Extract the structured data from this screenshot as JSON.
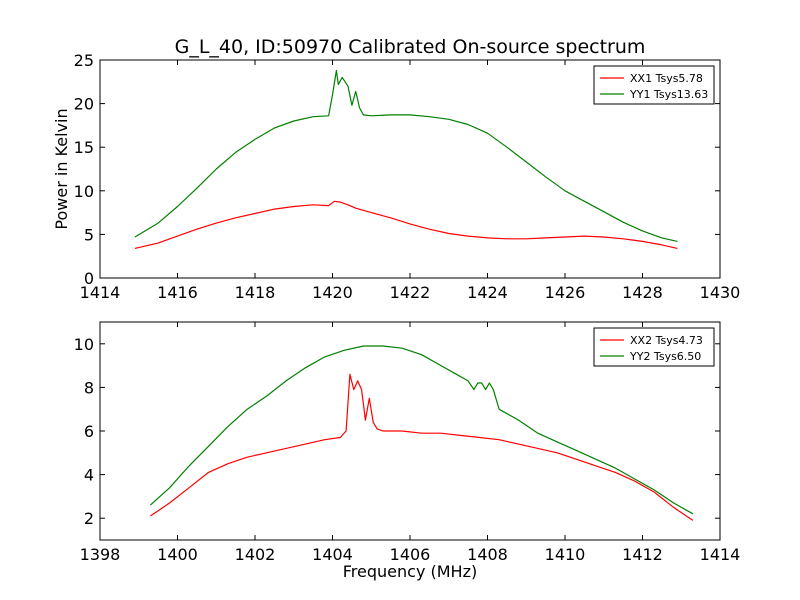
{
  "chart_data": [
    {
      "type": "line",
      "title": "G_L_40, ID:50970 Calibrated On-source spectrum",
      "xlabel": "",
      "ylabel": "Power in Kelvin",
      "xlim": [
        1414,
        1430
      ],
      "ylim": [
        0,
        25
      ],
      "xticks": [
        "1414",
        "1416",
        "1418",
        "1420",
        "1422",
        "1424",
        "1426",
        "1428",
        "1430"
      ],
      "yticks": [
        "0",
        "5",
        "10",
        "15",
        "20",
        "25"
      ],
      "legend": "top-right",
      "series": [
        {
          "name": "XX1 Tsys5.78",
          "color": "#ff0000",
          "x": [
            1414.9,
            1415.5,
            1416.0,
            1416.5,
            1417.0,
            1417.5,
            1418.0,
            1418.5,
            1419.0,
            1419.5,
            1419.9,
            1420.05,
            1420.2,
            1420.4,
            1420.6,
            1421.0,
            1421.5,
            1422.0,
            1422.5,
            1423.0,
            1423.5,
            1424.0,
            1424.5,
            1425.0,
            1425.5,
            1426.0,
            1426.5,
            1427.0,
            1427.5,
            1428.0,
            1428.5,
            1428.9
          ],
          "y": [
            3.4,
            4.0,
            4.8,
            5.6,
            6.3,
            6.9,
            7.4,
            7.9,
            8.2,
            8.4,
            8.3,
            8.8,
            8.7,
            8.4,
            8.0,
            7.5,
            6.9,
            6.2,
            5.6,
            5.1,
            4.8,
            4.6,
            4.5,
            4.5,
            4.6,
            4.7,
            4.8,
            4.7,
            4.5,
            4.2,
            3.8,
            3.4
          ]
        },
        {
          "name": "YY1 Tsys13.63",
          "color": "#008000",
          "x": [
            1414.9,
            1415.5,
            1416.0,
            1416.5,
            1417.0,
            1417.5,
            1418.0,
            1418.5,
            1419.0,
            1419.5,
            1419.9,
            1420.0,
            1420.1,
            1420.15,
            1420.25,
            1420.4,
            1420.5,
            1420.6,
            1420.7,
            1420.8,
            1421.0,
            1421.5,
            1422.0,
            1422.5,
            1423.0,
            1423.5,
            1424.0,
            1424.5,
            1425.0,
            1425.5,
            1426.0,
            1426.5,
            1427.0,
            1427.5,
            1428.0,
            1428.5,
            1428.9
          ],
          "y": [
            4.7,
            6.3,
            8.2,
            10.3,
            12.5,
            14.4,
            15.9,
            17.2,
            18.0,
            18.5,
            18.6,
            21.0,
            23.8,
            22.2,
            23.0,
            22.0,
            19.8,
            21.4,
            19.5,
            18.7,
            18.6,
            18.7,
            18.7,
            18.5,
            18.2,
            17.6,
            16.6,
            15.0,
            13.3,
            11.6,
            10.0,
            8.8,
            7.6,
            6.4,
            5.4,
            4.6,
            4.2
          ]
        }
      ]
    },
    {
      "type": "line",
      "title": "",
      "xlabel": "Frequency (MHz)",
      "ylabel": "",
      "xlim": [
        1398,
        1414
      ],
      "ylim": [
        1,
        11
      ],
      "xticks": [
        "1398",
        "1400",
        "1402",
        "1404",
        "1406",
        "1408",
        "1410",
        "1412",
        "1414"
      ],
      "yticks": [
        "2",
        "4",
        "6",
        "8",
        "10"
      ],
      "legend": "top-right",
      "series": [
        {
          "name": "XX2 Tsys4.73",
          "color": "#ff0000",
          "x": [
            1399.3,
            1399.8,
            1400.3,
            1400.8,
            1401.3,
            1401.8,
            1402.3,
            1402.8,
            1403.3,
            1403.8,
            1404.2,
            1404.35,
            1404.45,
            1404.55,
            1404.65,
            1404.75,
            1404.85,
            1404.95,
            1405.05,
            1405.15,
            1405.3,
            1405.8,
            1406.3,
            1406.8,
            1407.3,
            1407.8,
            1408.3,
            1408.8,
            1409.3,
            1409.8,
            1410.3,
            1410.8,
            1411.3,
            1411.8,
            1412.3,
            1412.8,
            1413.3
          ],
          "y": [
            2.1,
            2.7,
            3.4,
            4.1,
            4.5,
            4.8,
            5.0,
            5.2,
            5.4,
            5.6,
            5.7,
            6.0,
            8.6,
            7.9,
            8.3,
            7.9,
            6.5,
            7.5,
            6.4,
            6.1,
            6.0,
            6.0,
            5.9,
            5.9,
            5.8,
            5.7,
            5.6,
            5.4,
            5.2,
            5.0,
            4.7,
            4.4,
            4.1,
            3.7,
            3.2,
            2.5,
            1.9
          ]
        },
        {
          "name": "YY2 Tsys6.50",
          "color": "#008000",
          "x": [
            1399.3,
            1399.8,
            1400.3,
            1400.8,
            1401.3,
            1401.8,
            1402.3,
            1402.8,
            1403.3,
            1403.8,
            1404.3,
            1404.8,
            1405.3,
            1405.8,
            1406.3,
            1406.8,
            1407.2,
            1407.5,
            1407.65,
            1407.75,
            1407.85,
            1407.95,
            1408.05,
            1408.15,
            1408.3,
            1408.8,
            1409.3,
            1409.8,
            1410.3,
            1410.8,
            1411.3,
            1411.8,
            1412.3,
            1412.8,
            1413.3
          ],
          "y": [
            2.6,
            3.4,
            4.4,
            5.3,
            6.2,
            7.0,
            7.6,
            8.3,
            8.9,
            9.4,
            9.7,
            9.9,
            9.9,
            9.8,
            9.5,
            9.0,
            8.6,
            8.3,
            7.9,
            8.2,
            8.2,
            7.9,
            8.2,
            7.9,
            7.0,
            6.5,
            5.9,
            5.5,
            5.1,
            4.7,
            4.3,
            3.8,
            3.3,
            2.7,
            2.2
          ]
        }
      ]
    }
  ]
}
